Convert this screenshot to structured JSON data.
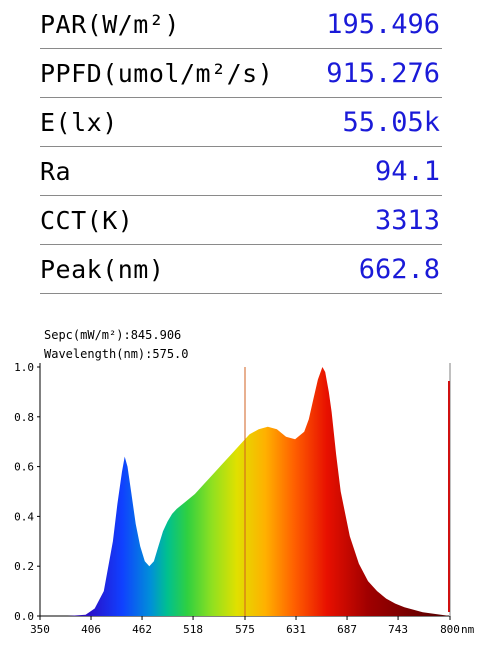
{
  "metrics": [
    {
      "label": "PAR(W/m²)",
      "value": "195.496"
    },
    {
      "label": "PPFD(umol/m²/s)",
      "value": "915.276"
    },
    {
      "label": "E(lx)",
      "value": "55.05k"
    },
    {
      "label": "Ra",
      "value": "94.1"
    },
    {
      "label": "CCT(K)",
      "value": "3313"
    },
    {
      "label": "Peak(nm)",
      "value": "662.8"
    }
  ],
  "readout": {
    "spec": "Sepc(mW/m²):845.906",
    "wavelength": "Wavelength(nm):575.0"
  },
  "chart_data": {
    "type": "area",
    "x_unit": "nm",
    "x_ticks": [
      "350",
      "406",
      "462",
      "518",
      "575",
      "631",
      "687",
      "743",
      "800"
    ],
    "y_ticks": [
      "0.0",
      "0.2",
      "0.4",
      "0.6",
      "0.8",
      "1.0"
    ],
    "xlim": [
      350,
      800
    ],
    "ylim": [
      0,
      1.0
    ],
    "cursor_nm": 575.0,
    "x": [
      350,
      380,
      400,
      410,
      420,
      430,
      435,
      440,
      443,
      446,
      450,
      455,
      460,
      465,
      470,
      475,
      480,
      485,
      490,
      495,
      500,
      510,
      520,
      530,
      540,
      550,
      560,
      570,
      575,
      580,
      590,
      600,
      610,
      620,
      630,
      640,
      645,
      650,
      655,
      660,
      663,
      667,
      670,
      675,
      680,
      690,
      700,
      710,
      720,
      730,
      740,
      750,
      760,
      770,
      780,
      790,
      800
    ],
    "y": [
      0.0,
      0.0,
      0.005,
      0.03,
      0.1,
      0.3,
      0.45,
      0.58,
      0.64,
      0.6,
      0.5,
      0.37,
      0.28,
      0.22,
      0.2,
      0.22,
      0.28,
      0.34,
      0.38,
      0.41,
      0.43,
      0.46,
      0.49,
      0.53,
      0.57,
      0.61,
      0.65,
      0.69,
      0.71,
      0.73,
      0.75,
      0.76,
      0.75,
      0.72,
      0.71,
      0.74,
      0.79,
      0.87,
      0.95,
      1.0,
      0.98,
      0.9,
      0.82,
      0.65,
      0.5,
      0.32,
      0.21,
      0.14,
      0.1,
      0.07,
      0.05,
      0.035,
      0.025,
      0.015,
      0.01,
      0.005,
      0.0
    ]
  }
}
